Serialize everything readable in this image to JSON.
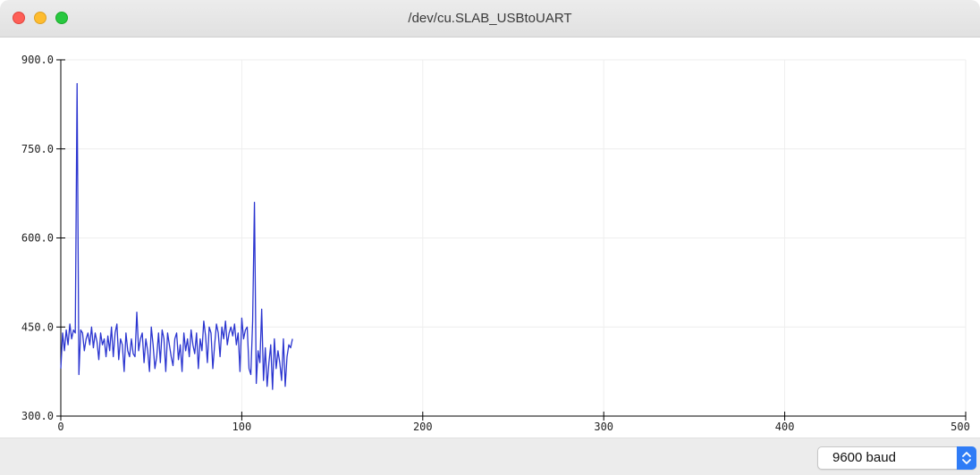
{
  "window": {
    "title": "/dev/cu.SLAB_USBtoUART"
  },
  "controls": {
    "baud_label": "9600 baud"
  },
  "colors": {
    "line": "#2b35d0",
    "grid": "#eeeeee",
    "axis": "#000000"
  },
  "chart_data": {
    "type": "line",
    "xlim": [
      0,
      500
    ],
    "ylim": [
      300,
      900
    ],
    "x_ticks": [
      0,
      100,
      200,
      300,
      400,
      500
    ],
    "x_tick_labels": [
      "0",
      "100",
      "200",
      "300",
      "400",
      "500"
    ],
    "y_ticks": [
      300,
      450,
      600,
      750,
      900
    ],
    "y_tick_labels": [
      "300.0",
      "450.0",
      "600.0",
      "750.0",
      "900.0"
    ],
    "grid": true,
    "series": [
      {
        "values": [
          380,
          440,
          410,
          445,
          420,
          455,
          430,
          445,
          440,
          860,
          370,
          445,
          440,
          410,
          430,
          440,
          420,
          450,
          415,
          440,
          425,
          395,
          440,
          420,
          430,
          400,
          435,
          410,
          450,
          400,
          440,
          455,
          395,
          430,
          420,
          375,
          440,
          410,
          400,
          430,
          405,
          400,
          475,
          410,
          430,
          440,
          390,
          430,
          410,
          375,
          450,
          420,
          380,
          400,
          440,
          390,
          445,
          430,
          375,
          440,
          420,
          400,
          385,
          430,
          440,
          395,
          420,
          375,
          440,
          410,
          430,
          400,
          445,
          420,
          405,
          440,
          380,
          430,
          410,
          460,
          435,
          390,
          450,
          440,
          380,
          420,
          455,
          440,
          400,
          450,
          430,
          460,
          420,
          440,
          450,
          435,
          455,
          420,
          440,
          375,
          465,
          430,
          445,
          450,
          380,
          370,
          460,
          660,
          355,
          410,
          390,
          480,
          360,
          415,
          350,
          390,
          420,
          345,
          430,
          380,
          410,
          390,
          360,
          430,
          350,
          400,
          420,
          415,
          430
        ]
      }
    ]
  }
}
